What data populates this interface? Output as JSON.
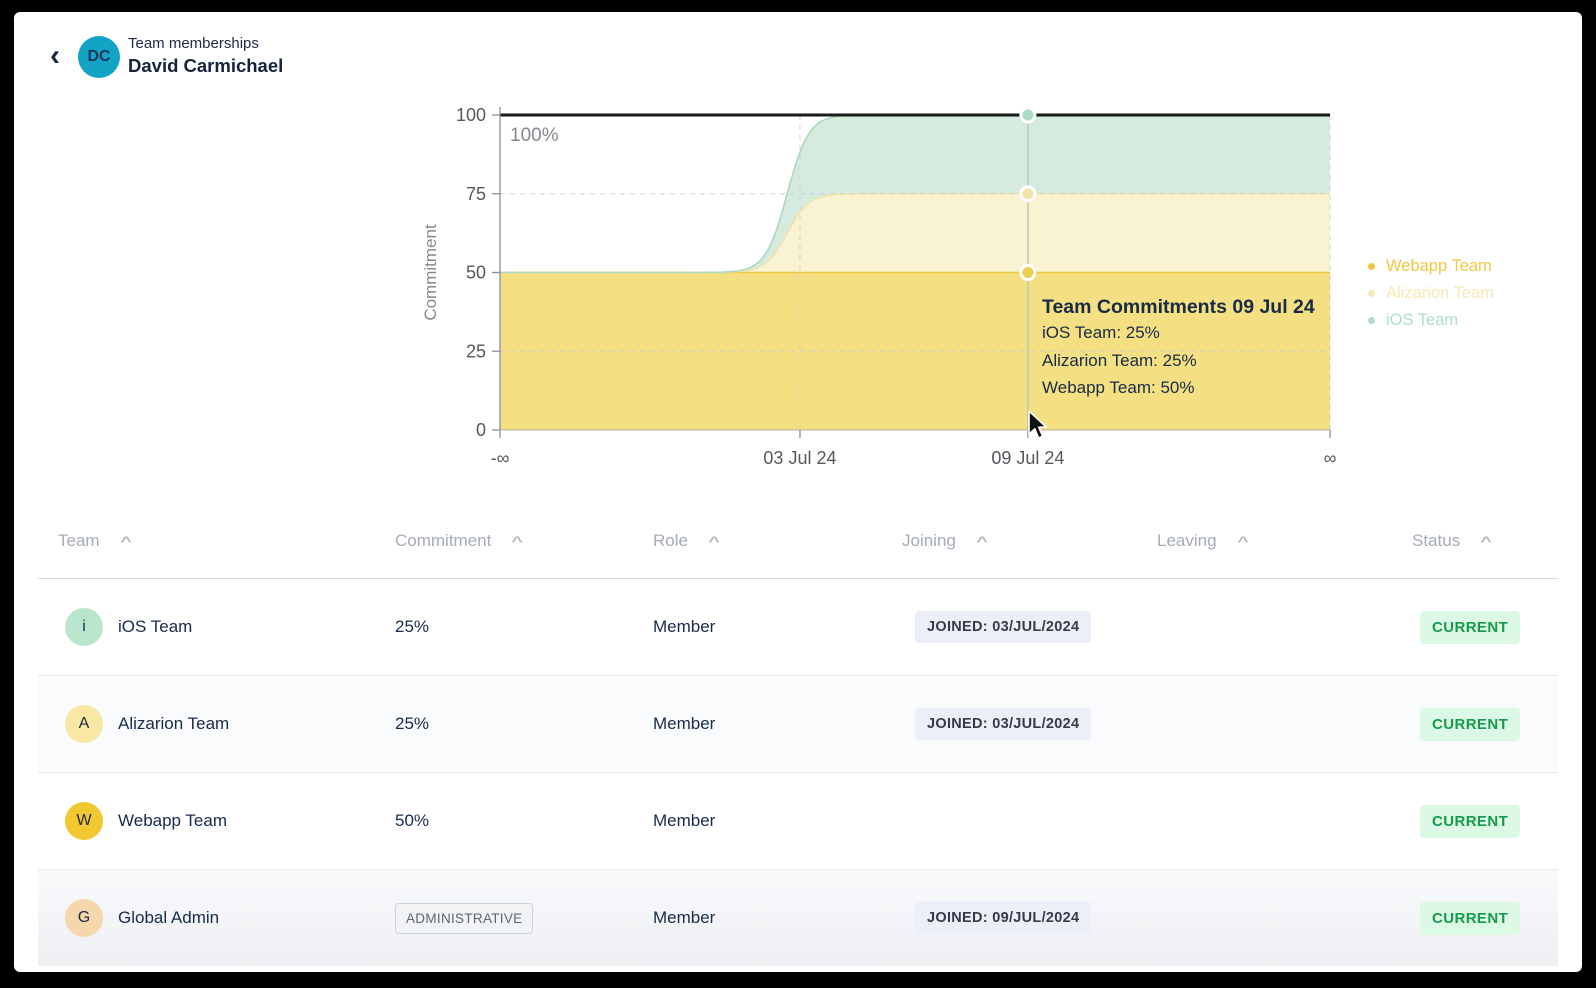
{
  "header": {
    "back_icon": "‹",
    "avatar_initials": "DC",
    "subtitle": "Team memberships",
    "title": "David Carmichael"
  },
  "chart_data": {
    "type": "area",
    "stacked": true,
    "ylabel": "Commitment",
    "ylim": [
      0,
      100
    ],
    "y_ticks": [
      0,
      25,
      50,
      75,
      100
    ],
    "y_grid_dashed": [
      25,
      75
    ],
    "x_ticks": [
      {
        "label": "-∞",
        "pos": 0
      },
      {
        "label": "03 Jul 24",
        "pos": 0.3614
      },
      {
        "label": "09 Jul 24",
        "pos": 0.636
      },
      {
        "label": "∞",
        "pos": 1
      }
    ],
    "x_grid_dashed": [
      0.3614,
      1
    ],
    "transition": {
      "center": 0.346,
      "width": 0.013
    },
    "series": [
      {
        "name": "Webapp Team",
        "value_before": 50,
        "value_after": 50,
        "fill": "#F4DF82",
        "stroke": "#E7C83F",
        "marker_fill": "#EDCF4B"
      },
      {
        "name": "Alizarion Team",
        "value_before": 0,
        "value_after": 25,
        "fill": "#FAF3D2",
        "stroke": "#F0E3A8",
        "marker_fill": "#F2E3A6"
      },
      {
        "name": "iOS Team",
        "value_before": 0,
        "value_after": 25,
        "fill": "#D4EBDE",
        "stroke": "#A8D8BF",
        "marker_fill": "#A9DDC3"
      }
    ],
    "max_line": {
      "value": 100,
      "label": "100%",
      "color": "#1A1A1A"
    },
    "hover": {
      "pos": 0.636,
      "line_color": "#B8C2BC"
    },
    "axis_color": "#8A8F98",
    "tick_label_color": "#55585E",
    "grid_color": "#C9CDD2",
    "ylabel_color": "#85898F"
  },
  "legend": {
    "items": [
      {
        "name": "Webapp Team",
        "color": "#F1C741"
      },
      {
        "name": "Alizarion Team",
        "color": "#F6E9B4"
      },
      {
        "name": "iOS Team",
        "color": "#AEDFC6"
      }
    ]
  },
  "tooltip": {
    "title": "Team Commitments 09 Jul 24",
    "lines": [
      "iOS Team: 25%",
      "Alizarion Team: 25%",
      "Webapp Team: 50%"
    ]
  },
  "table": {
    "sort_icon": "^",
    "columns": [
      "Team",
      "Commitment",
      "Role",
      "Joining",
      "Leaving",
      "Status"
    ],
    "rows": [
      {
        "initial": "i",
        "avatar_color": "#B9E5CC",
        "team": "iOS Team",
        "commitment": "25%",
        "commitment_badge": "",
        "role": "Member",
        "joining_badge": "JOINED: 03/JUL/2024",
        "leaving_badge": "",
        "status": "CURRENT"
      },
      {
        "initial": "A",
        "avatar_color": "#F9E7A4",
        "team": "Alizarion Team",
        "commitment": "25%",
        "commitment_badge": "",
        "role": "Member",
        "joining_badge": "JOINED: 03/JUL/2024",
        "leaving_badge": "",
        "status": "CURRENT"
      },
      {
        "initial": "W",
        "avatar_color": "#F2C831",
        "team": "Webapp Team",
        "commitment": "50%",
        "commitment_badge": "",
        "role": "Member",
        "joining_badge": "",
        "leaving_badge": "",
        "status": "CURRENT"
      },
      {
        "initial": "G",
        "avatar_color": "#F5D7AB",
        "team": "Global Admin",
        "commitment": "",
        "commitment_badge": "ADMINISTRATIVE",
        "role": "Member",
        "joining_badge": "JOINED: 09/JUL/2024",
        "leaving_badge": "",
        "status": "CURRENT"
      }
    ]
  }
}
